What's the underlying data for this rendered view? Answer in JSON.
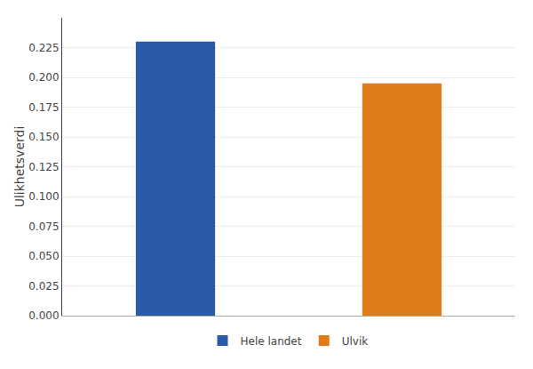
{
  "chart_data": {
    "type": "bar",
    "categories": [
      "Hele landet",
      "Ulvik"
    ],
    "values": [
      0.23,
      0.195
    ],
    "colors": [
      "#2B5BA8",
      "#E07B1A"
    ],
    "ylabel": "Ulikhetsverdi",
    "ylim": [
      0,
      0.25
    ],
    "yticks": [
      {
        "value": 0.0,
        "label": "0.000"
      },
      0.025,
      {
        "value": 0.05,
        "label": "0.050"
      },
      0.075,
      {
        "value": 0.1,
        "label": "0.100"
      },
      0.125,
      {
        "value": 0.15,
        "label": "0.150"
      },
      0.175,
      {
        "value": 0.2,
        "label": "0.200"
      },
      0.225
    ],
    "grid": true,
    "legend": "bottom",
    "tick_labels": "y"
  }
}
